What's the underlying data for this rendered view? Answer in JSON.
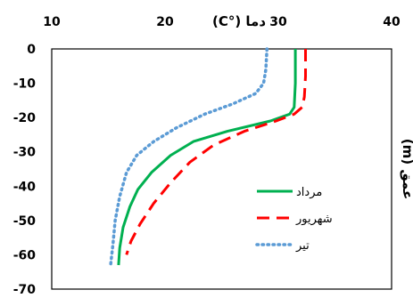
{
  "chart_data": {
    "type": "line",
    "xlabel": "دما (°C)",
    "ylabel": "عمق (m)",
    "xlim": [
      10,
      40
    ],
    "ylim": [
      -70,
      0
    ],
    "x_ticks": [
      "10",
      "20",
      "30",
      "40"
    ],
    "y_ticks": [
      "0",
      "-10",
      "-20",
      "-30",
      "-40",
      "-50",
      "-60",
      "-70"
    ],
    "grid": false,
    "legend_position": "inside-right",
    "series": [
      {
        "name": "مرداد",
        "color": "#00b050",
        "style": "solid",
        "points": [
          [
            31.5,
            0
          ],
          [
            31.5,
            -10
          ],
          [
            31.4,
            -17
          ],
          [
            31.0,
            -19
          ],
          [
            29.3,
            -21
          ],
          [
            25.5,
            -24
          ],
          [
            22.5,
            -27
          ],
          [
            20.5,
            -31
          ],
          [
            18.8,
            -36
          ],
          [
            17.6,
            -41
          ],
          [
            16.9,
            -46
          ],
          [
            16.3,
            -52
          ],
          [
            16.0,
            -58
          ],
          [
            15.9,
            -63
          ]
        ]
      },
      {
        "name": "شهریور",
        "color": "#ff0000",
        "style": "dashed",
        "points": [
          [
            32.4,
            0
          ],
          [
            32.4,
            -8
          ],
          [
            32.3,
            -14
          ],
          [
            32.1,
            -17
          ],
          [
            31.4,
            -19
          ],
          [
            29.8,
            -21
          ],
          [
            27.0,
            -24
          ],
          [
            24.3,
            -28
          ],
          [
            22.2,
            -33
          ],
          [
            20.5,
            -39
          ],
          [
            19.0,
            -45
          ],
          [
            17.8,
            -51
          ],
          [
            17.0,
            -56
          ],
          [
            16.6,
            -60
          ]
        ]
      },
      {
        "name": "تیر",
        "color": "#5b9bd5",
        "style": "dotted",
        "points": [
          [
            29.0,
            0
          ],
          [
            28.9,
            -6
          ],
          [
            28.7,
            -10
          ],
          [
            28.0,
            -13
          ],
          [
            26.0,
            -16
          ],
          [
            23.5,
            -19
          ],
          [
            21.0,
            -23
          ],
          [
            19.0,
            -27
          ],
          [
            17.5,
            -31
          ],
          [
            16.6,
            -36
          ],
          [
            16.0,
            -43
          ],
          [
            15.6,
            -50
          ],
          [
            15.4,
            -57
          ],
          [
            15.2,
            -63
          ]
        ]
      }
    ]
  }
}
